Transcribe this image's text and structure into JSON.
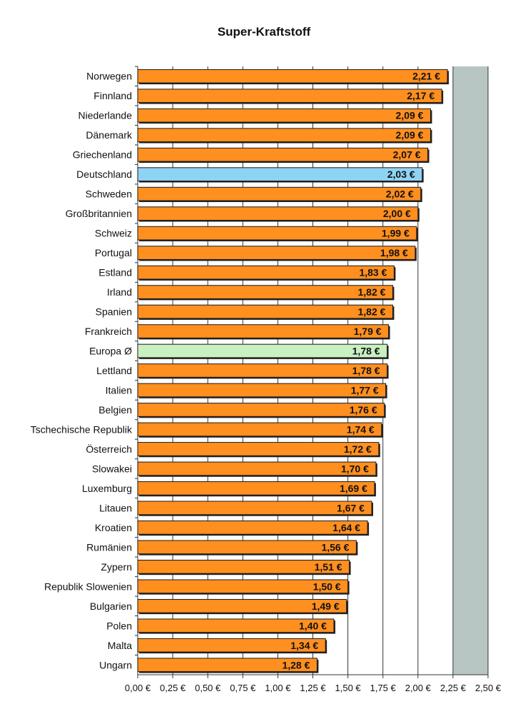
{
  "chart_data": {
    "type": "bar",
    "orientation": "horizontal",
    "title": "Super-Kraftstoff",
    "xlabel": "",
    "ylabel": "",
    "categories": [
      "Norwegen",
      "Finnland",
      "Niederlande",
      "Dänemark",
      "Griechenland",
      "Deutschland",
      "Schweden",
      "Großbritannien",
      "Schweiz",
      "Portugal",
      "Estland",
      "Irland",
      "Spanien",
      "Frankreich",
      "Europa Ø",
      "Lettland",
      "Italien",
      "Belgien",
      "Tschechische Republik",
      "Österreich",
      "Slowakei",
      "Luxemburg",
      "Litauen",
      "Kroatien",
      "Rumänien",
      "Zypern",
      "Republik Slowenien",
      "Bulgarien",
      "Polen",
      "Malta",
      "Ungarn"
    ],
    "values": [
      2.21,
      2.17,
      2.09,
      2.09,
      2.07,
      2.03,
      2.02,
      2.0,
      1.99,
      1.98,
      1.83,
      1.82,
      1.82,
      1.79,
      1.78,
      1.78,
      1.77,
      1.76,
      1.74,
      1.72,
      1.7,
      1.69,
      1.67,
      1.64,
      1.56,
      1.51,
      1.5,
      1.49,
      1.4,
      1.34,
      1.28
    ],
    "value_labels": [
      "2,21 €",
      "2,17 €",
      "2,09 €",
      "2,09 €",
      "2,07 €",
      "2,03 €",
      "2,02 €",
      "2,00 €",
      "1,99 €",
      "1,98 €",
      "1,83 €",
      "1,82 €",
      "1,82 €",
      "1,79 €",
      "1,78 €",
      "1,78 €",
      "1,77 €",
      "1,76 €",
      "1,74 €",
      "1,72 €",
      "1,70 €",
      "1,69 €",
      "1,67 €",
      "1,64 €",
      "1,56 €",
      "1,51 €",
      "1,50 €",
      "1,49 €",
      "1,40 €",
      "1,34 €",
      "1,28 €"
    ],
    "xlim": [
      0,
      2.5
    ],
    "xticks": [
      0,
      0.25,
      0.5,
      0.75,
      1.0,
      1.25,
      1.5,
      1.75,
      2.0,
      2.25,
      2.5
    ],
    "xtick_labels": [
      "0,00 €",
      "0,25 €",
      "0,50 €",
      "0,75 €",
      "1,00 €",
      "1,25 €",
      "1,50 €",
      "1,75 €",
      "2,00 €",
      "2,25 €",
      "2,50 €"
    ],
    "grid": true,
    "legend": "none",
    "highlight": {
      "Deutschland": "#8fd3f4",
      "Europa Ø": "#c8f0c0"
    },
    "colors": {
      "bar": "#ff8f1f",
      "plot_background": "#b7c6c2",
      "bar_outline": "#1a1a1a",
      "gridline": "#333333"
    }
  }
}
